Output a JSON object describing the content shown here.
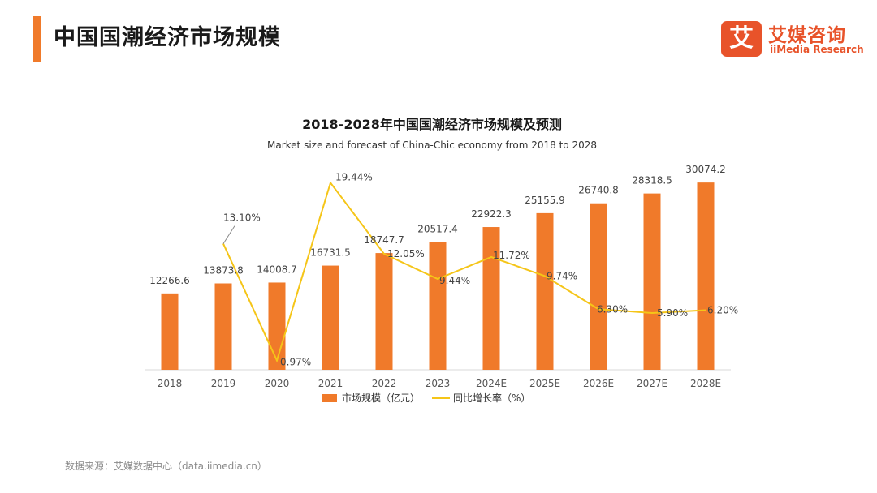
{
  "header": {
    "title": "中国国潮经济市场规模"
  },
  "logo": {
    "badge": "艾",
    "name_cn": "艾媒咨询",
    "name_en": "iiMedia Research"
  },
  "colors": {
    "bar": "#f07a2a",
    "line": "#f5c518",
    "accent": "#f07a2a",
    "brand": "#e8532a"
  },
  "chart_data": {
    "type": "bar",
    "title": "2018-2028年中国国潮经济市场规模及预测",
    "subtitle": "Market size and forecast of China-Chic economy from 2018 to 2028",
    "categories": [
      "2018",
      "2019",
      "2020",
      "2021",
      "2022",
      "2023",
      "2024E",
      "2025E",
      "2026E",
      "2027E",
      "2028E"
    ],
    "series": [
      {
        "name": "市场规模（亿元）",
        "type": "bar",
        "values": [
          12266.6,
          13873.8,
          14008.7,
          16731.5,
          18747.7,
          20517.4,
          22922.3,
          25155.9,
          26740.8,
          28318.5,
          30074.2
        ]
      },
      {
        "name": "同比增长率（%）",
        "type": "line",
        "values": [
          null,
          13.1,
          0.97,
          19.44,
          12.05,
          9.44,
          11.72,
          9.74,
          6.3,
          5.9,
          6.2
        ]
      }
    ],
    "bar_labels": [
      "12266.6",
      "13873.8",
      "14008.7",
      "16731.5",
      "18747.7",
      "20517.4",
      "22922.3",
      "25155.9",
      "26740.8",
      "28318.5",
      "30074.2"
    ],
    "line_labels": [
      "",
      "13.10%",
      "0.97%",
      "19.44%",
      "12.05%",
      "9.44%",
      "11.72%",
      "9.74%",
      "6.30%",
      "5.90%",
      "6.20%"
    ],
    "ylim": [
      0,
      34000
    ],
    "y2lim": [
      0,
      22
    ],
    "legend_position": "bottom-center",
    "grid": false
  },
  "footer": {
    "source": "数据来源：艾媒数据中心（data.iimedia.cn）"
  }
}
